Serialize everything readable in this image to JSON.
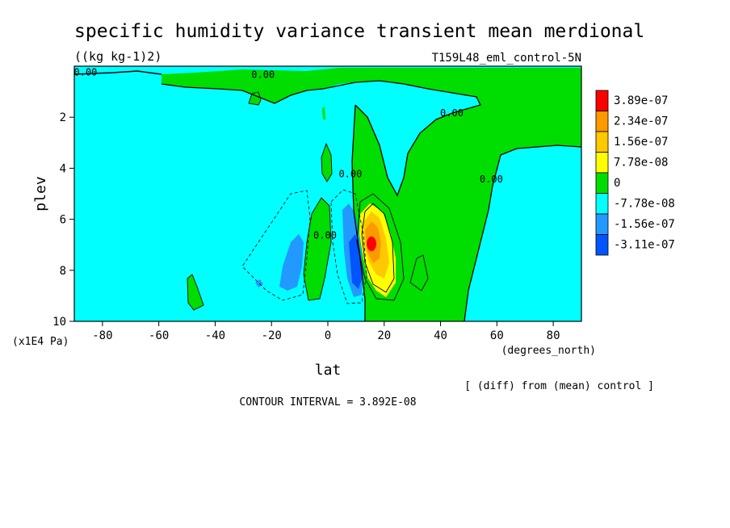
{
  "header": {
    "title": "specific humidity variance transient mean merdional",
    "units": "((kg kg-1)2)",
    "run_label": "T159L48_eml_control-5N"
  },
  "footer": {
    "diff_note": "[ (diff) from (mean) control ]",
    "contour_interval": "CONTOUR INTERVAL = 3.892E-08"
  },
  "colors": {
    "red": "#ff0000",
    "dark_orange": "#ff9900",
    "gold": "#ffc800",
    "yellow": "#ffff00",
    "green": "#00dd00",
    "cyan": "#00ffff",
    "light_blue": "#2299ff",
    "blue": "#0055ff"
  },
  "chart_data": {
    "type": "heatmap",
    "title": "specific humidity variance transient mean merdional",
    "xlabel": "lat",
    "xunits": "(degrees_north)",
    "ylabel": "plev",
    "yunits": "(x1E4 Pa)",
    "xlim": [
      -90,
      90
    ],
    "ylim": [
      10,
      0
    ],
    "x_ticks": [
      -80,
      -60,
      -40,
      -20,
      0,
      20,
      40,
      60,
      80
    ],
    "y_ticks": [
      2,
      4,
      6,
      8,
      10
    ],
    "legend": {
      "placement": "right",
      "labels": [
        "3.89e-07",
        "2.34e-07",
        "1.56e-07",
        "7.78e-08",
        "0",
        "-7.78e-08",
        "-1.56e-07",
        "-3.11e-07"
      ],
      "colors": [
        "#ff0000",
        "#ff9900",
        "#ffc800",
        "#ffff00",
        "#00dd00",
        "#00ffff",
        "#2299ff",
        "#0055ff"
      ]
    },
    "contour_labels": [
      {
        "text": "0.00",
        "x": -86,
        "y": 0.2
      },
      {
        "text": "0.00",
        "x": -23,
        "y": 0.3
      },
      {
        "text": "0.00",
        "x": 44,
        "y": 1.8
      },
      {
        "text": "0.00",
        "x": 58,
        "y": 4.4
      },
      {
        "text": "0.00",
        "x": 8,
        "y": 4.2
      },
      {
        "text": "0.00",
        "x": -1,
        "y": 6.6
      }
    ]
  }
}
